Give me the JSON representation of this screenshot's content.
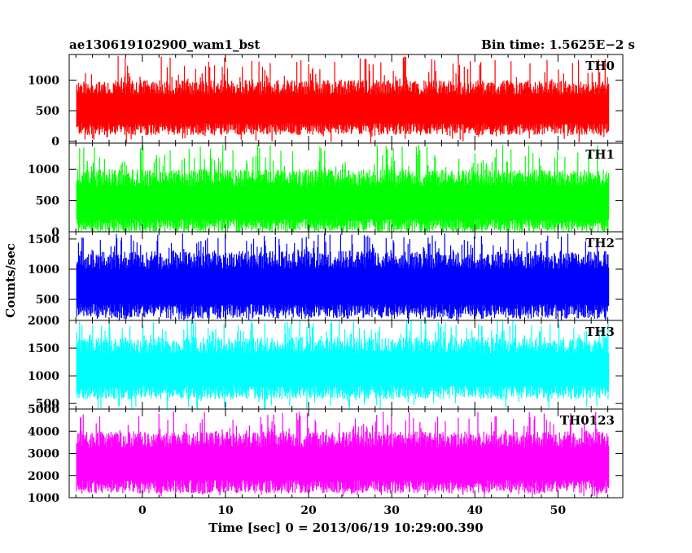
{
  "chart_data": {
    "type": "line",
    "title_left": "ae130619102900_wam1_bst",
    "title_right": "Bin time: 1.5625E−2 s",
    "xlabel": "Time [sec] 0 = 2013/06/19 10:29:00.390",
    "ylabel": "Counts/sec",
    "xlim": [
      -8.8,
      57.8
    ],
    "x_ticks": [
      0,
      10,
      20,
      30,
      40,
      50
    ],
    "x_tick_labels": [
      "0",
      "10",
      "20",
      "30",
      "40",
      "50"
    ],
    "data_x_range": [
      -7.9,
      56.1
    ],
    "grid": false,
    "panels": [
      {
        "name": "TH0",
        "color": "#ff0000",
        "ylim": [
          -30,
          1420
        ],
        "y_ticks": [
          0,
          500,
          1000
        ],
        "y_tick_labels": [
          "0",
          "500",
          "1000"
        ],
        "typical_low": 200,
        "typical_high": 1000,
        "peak_max": 1400,
        "mean": 600
      },
      {
        "name": "TH1",
        "color": "#00ff00",
        "ylim": [
          0,
          1420
        ],
        "y_ticks": [
          0,
          500,
          1000
        ],
        "y_tick_labels": [
          "0",
          "500",
          "1000"
        ],
        "typical_low": 100,
        "typical_high": 1000,
        "peak_max": 1400,
        "mean": 550
      },
      {
        "name": "TH2",
        "color": "#0000ff",
        "ylim": [
          150,
          1620
        ],
        "y_ticks": [
          500,
          1000,
          1500
        ],
        "y_tick_labels": [
          "500",
          "1000",
          "1500"
        ],
        "typical_low": 300,
        "typical_high": 1300,
        "peak_max": 1600,
        "mean": 750
      },
      {
        "name": "TH3",
        "color": "#00ffff",
        "ylim": [
          400,
          2000
        ],
        "y_ticks": [
          500,
          1000,
          1500,
          2000
        ],
        "y_tick_labels": [
          "500",
          "1000",
          "1500",
          "2000"
        ],
        "typical_low": 700,
        "typical_high": 1700,
        "peak_max": 2000,
        "mean": 1200
      },
      {
        "name": "TH0123",
        "color": "#ff00ff",
        "ylim": [
          1000,
          5000
        ],
        "y_ticks": [
          1000,
          2000,
          3000,
          4000,
          5000
        ],
        "y_tick_labels": [
          "1000",
          "2000",
          "3000",
          "4000",
          "5000"
        ],
        "typical_low": 1500,
        "typical_high": 4000,
        "peak_max": 4900,
        "mean": 2700
      }
    ]
  }
}
